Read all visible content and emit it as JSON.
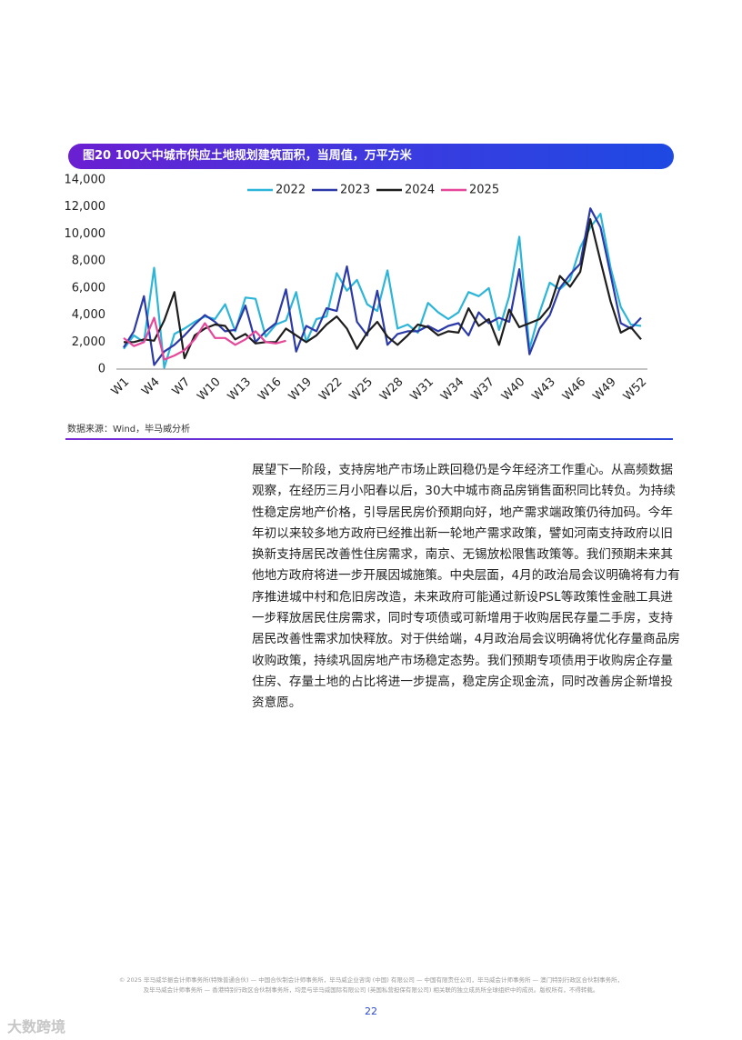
{
  "chart_data": {
    "type": "line",
    "title": "图20 100大中城市供应土地规划建筑面积，当周值，万平方米",
    "categories": [
      "W1",
      null,
      null,
      "W4",
      null,
      null,
      "W7",
      null,
      null,
      "W10",
      null,
      null,
      "W13",
      null,
      null,
      "W16",
      null,
      null,
      "W19",
      null,
      null,
      "W22",
      null,
      null,
      "W25",
      null,
      null,
      "W28",
      null,
      null,
      "W31",
      null,
      null,
      "W34",
      null,
      null,
      "W37",
      null,
      null,
      "W40",
      null,
      null,
      "W43",
      null,
      null,
      "W46",
      null,
      null,
      "W49",
      null,
      null,
      "W52"
    ],
    "series": [
      {
        "name": "2022",
        "color": "#2cb5d9",
        "values": [
          1500,
          2500,
          2000,
          7500,
          100,
          2600,
          3000,
          3500,
          3900,
          3700,
          4800,
          2800,
          5300,
          5200,
          2400,
          3300,
          3600,
          5700,
          2000,
          3700,
          3900,
          7100,
          5800,
          6600,
          4800,
          4300,
          7300,
          3000,
          3300,
          2700,
          4900,
          4200,
          3700,
          4200,
          5700,
          5400,
          6000,
          2900,
          5400,
          9800,
          1500,
          4200,
          6400,
          5900,
          6600,
          9000,
          10500,
          11500,
          7500,
          4600,
          3300,
          3200
        ]
      },
      {
        "name": "2023",
        "color": "#2b3aa8",
        "values": [
          1600,
          2800,
          5400,
          300,
          1300,
          1800,
          2500,
          3300,
          4000,
          3500,
          2800,
          2900,
          4700,
          2000,
          2800,
          3400,
          5900,
          1300,
          3200,
          2800,
          4500,
          4300,
          7600,
          3500,
          2500,
          5800,
          1800,
          2600,
          2800,
          2800,
          3200,
          2800,
          3200,
          3400,
          2500,
          4200,
          3400,
          3800,
          3500,
          7400,
          1100,
          3000,
          4000,
          6000,
          7000,
          7800,
          11900,
          10500,
          7000,
          3400,
          3000,
          3800
        ]
      },
      {
        "name": "2024",
        "color": "#1e1e1e",
        "values": [
          2000,
          2000,
          2200,
          2100,
          3600,
          5700,
          800,
          2500,
          3000,
          3300,
          3200,
          2200,
          2600,
          1900,
          2000,
          2000,
          3000,
          2500,
          2000,
          2500,
          3300,
          3900,
          3000,
          1500,
          2700,
          3500,
          2400,
          1800,
          2500,
          3300,
          3100,
          2500,
          2800,
          2700,
          4500,
          3200,
          3700,
          1800,
          4400,
          3100,
          3400,
          3700,
          4600,
          6900,
          6100,
          7200,
          11100,
          8000,
          5000,
          2700,
          3100,
          2200
        ]
      },
      {
        "name": "2025",
        "color": "#e6479a",
        "values": [
          2300,
          1700,
          2000,
          3800,
          700,
          1000,
          1400,
          2200,
          3400,
          2300,
          2300,
          1800,
          2200,
          2800,
          2000,
          1900,
          2100,
          null,
          null,
          null,
          null,
          null,
          null,
          null,
          null,
          null,
          null,
          null,
          null,
          null,
          null,
          null,
          null,
          null,
          null,
          null,
          null,
          null,
          null,
          null,
          null,
          null,
          null,
          null,
          null,
          null,
          null,
          null,
          null,
          null,
          null,
          null
        ]
      }
    ],
    "ylim": [
      0,
      14000
    ],
    "yticks": [
      0,
      {
        "value": 2000,
        "label": "2,000"
      },
      {
        "value": 4000,
        "label": "4,000"
      },
      {
        "value": 6000,
        "label": "6,000"
      },
      {
        "value": 8000,
        "label": "8,000"
      },
      {
        "value": 10000,
        "label": "10,000"
      },
      {
        "value": 12000,
        "label": "12,000"
      },
      {
        "value": 14000,
        "label": "14,000"
      }
    ],
    "legend": "top"
  },
  "source": "数据来源：Wind，毕马威分析",
  "paragraph_lines": [
    "展望下一阶段，支持房地产市场止跌回稳仍是今年经济工作重心。从高频数据",
    "观察，在经历三月小阳春以后，30大中城市商品房销售面积同比转负。为持续",
    "性稳定房地产价格，引导居民房价预期向好，地产需求端政策仍待加码。今年",
    "年初以来较多地方政府已经推出新一轮地产需求政策，譬如河南支持政府以旧",
    "换新支持居民改善性住房需求，南京、无锡放松限售政策等。我们预期未来其",
    "他地方政府将进一步开展因城施策。中央层面，4月的政治局会议明确将有力有",
    "序推进城中村和危旧房改造，未来政府可能通过新设PSL等政策性金融工具进",
    "一步释放居民住房需求，同时专项债或可新增用于收购居民存量二手房，支持",
    "居民改善性需求加快释放。对于供给端，4月政治局会议明确将优化存量商品房",
    "收购政策，持续巩固房地产市场稳定态势。我们预期专项债用于收购房企存量",
    "住房、存量土地的占比将进一步提高，稳定房企现金流，同时改善房企新增投",
    "资意愿。"
  ],
  "footer_lines": [
    "© 2025 毕马威华振会计师事务所(特殊普通合伙) — 中国合伙制会计师事务所，毕马威企业咨询 (中国) 有限公司 — 中国有限责任公司，毕马威会计师事务所 — 澳门特别行政区合伙制事务所，",
    "及毕马威会计师事务所 — 香港特别行政区合伙制事务所，均是与毕马威国际有限公司 (英国私营担保有限公司) 相关联的独立成员所全球组织中的成员。版权所有，不得转载。"
  ],
  "page_number": "22",
  "watermark": "大数跨境"
}
